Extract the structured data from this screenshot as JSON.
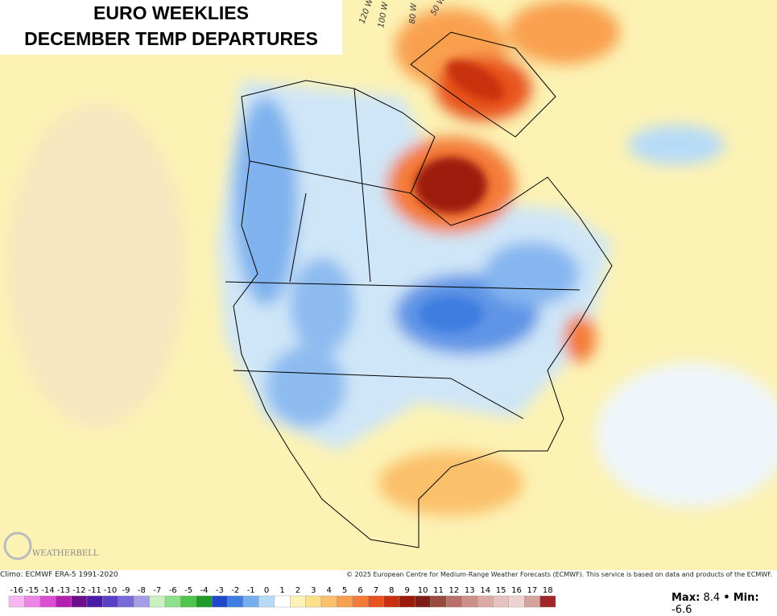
{
  "header": {
    "title_line1": "EURO WEEKLIES",
    "title_line2": "DECEMBER TEMP DEPARTURES"
  },
  "map_labels": [
    "120 W",
    "100 W",
    "80 W",
    "50 W"
  ],
  "logo": "WEATHERBELL",
  "footer": {
    "climo": "Climo: ECMWF ERA-5 1991-2020",
    "copyright": "© 2025 European Centre for Medium-Range Weather Forecasts (ECMWF). This service is based on data and products of the ECMWF."
  },
  "legend": {
    "ticks": [
      -16,
      -15,
      -14,
      -13,
      -12,
      -11,
      -10,
      -9,
      -8,
      -7,
      -6,
      -5,
      -4,
      -3,
      -2,
      -1,
      0,
      1,
      2,
      3,
      4,
      5,
      6,
      7,
      8,
      9,
      10,
      11,
      12,
      13,
      14,
      15,
      16,
      17,
      18
    ],
    "colors": [
      "#f7b6f0",
      "#ee85e6",
      "#dc4fd4",
      "#b31fae",
      "#6b0f8f",
      "#4a1aa8",
      "#5b3fc8",
      "#7a6ad8",
      "#a59ee6",
      "#c9f0c0",
      "#8ee08a",
      "#4fc54c",
      "#1f9a2b",
      "#1d49c9",
      "#3d7ee0",
      "#76aef0",
      "#b7dbf7",
      "#ffffff",
      "#fbf3b8",
      "#fde08d",
      "#fbc06b",
      "#f9a050",
      "#f47a37",
      "#e8521e",
      "#c8300f",
      "#9c1a0a",
      "#7e1d15",
      "#9a4a3f",
      "#b87068",
      "#cc9089",
      "#dcaaa5",
      "#e7c1bf",
      "#efd3d2",
      "#d3a39c",
      "#a0262a"
    ]
  },
  "max_label": "Max:",
  "max": 8.4,
  "separator": "•",
  "min_label": "Min:",
  "min": -6.6
}
